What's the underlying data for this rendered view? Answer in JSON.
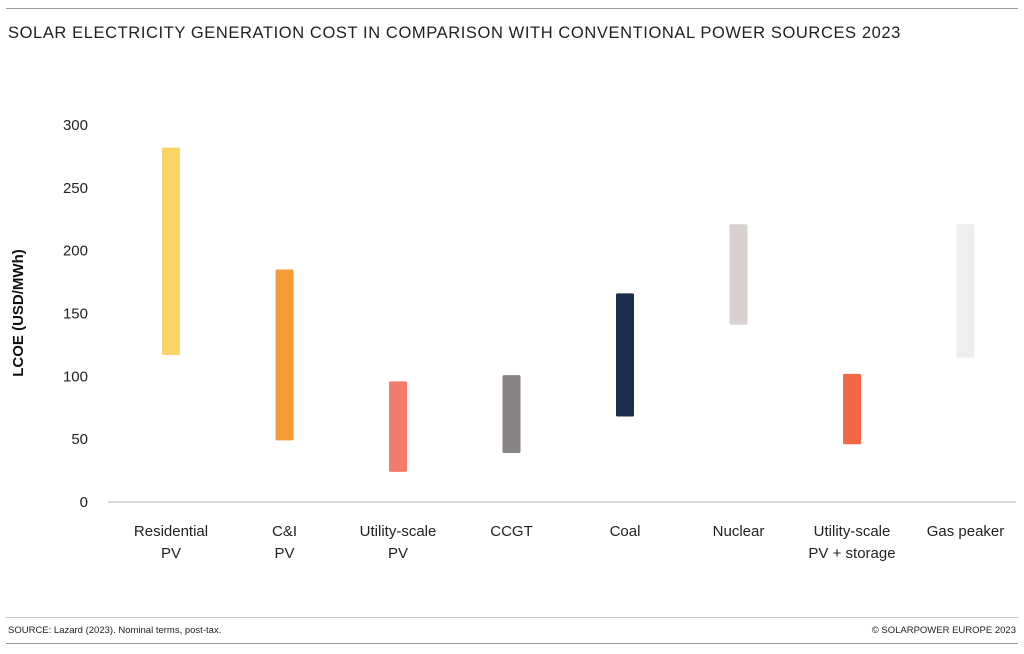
{
  "title": "SOLAR ELECTRICITY GENERATION COST IN COMPARISON WITH CONVENTIONAL POWER SOURCES 2023",
  "footer": {
    "source": "SOURCE: Lazard (2023). Nominal terms, post-tax.",
    "copyright": "© SOLARPOWER EUROPE 2023"
  },
  "chart_data": {
    "type": "bar",
    "subtype": "floating-range",
    "ylabel": "LCOE (USD/MWh)",
    "xlabel": "",
    "ylim": [
      0,
      300
    ],
    "yticks": [
      0,
      50,
      100,
      150,
      200,
      250,
      300
    ],
    "grid": false,
    "legend": "none",
    "categories": [
      {
        "label": [
          "Residential",
          "PV"
        ],
        "low": 117,
        "high": 282,
        "color": "#FDD468"
      },
      {
        "label": [
          "C&I",
          "PV"
        ],
        "low": 49,
        "high": 185,
        "color": "#F79B38"
      },
      {
        "label": [
          "Utility-scale",
          "PV"
        ],
        "low": 24,
        "high": 96,
        "color": "#F27B6D"
      },
      {
        "label": [
          "CCGT"
        ],
        "low": 39,
        "high": 101,
        "color": "#878382"
      },
      {
        "label": [
          "Coal"
        ],
        "low": 68,
        "high": 166,
        "color": "#1A2E4B"
      },
      {
        "label": [
          "Nuclear"
        ],
        "low": 141,
        "high": 221,
        "color": "#D9D1D0"
      },
      {
        "label": [
          "Utility-scale",
          "PV + storage"
        ],
        "low": 46,
        "high": 102,
        "color": "#F26846"
      },
      {
        "label": [
          "Gas peaker"
        ],
        "low": 115,
        "high": 221,
        "color": "#EEEEEE"
      }
    ]
  }
}
